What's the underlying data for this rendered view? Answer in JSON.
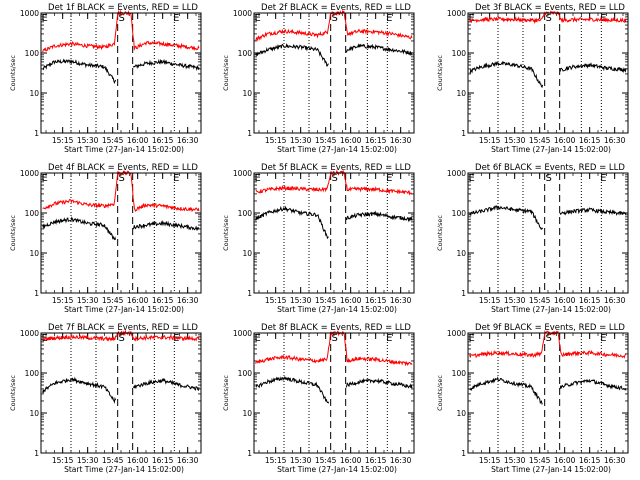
{
  "figure": {
    "ylabel": "Counts/sec",
    "xlabel": "Start Time (27-Jan-14 15:02:00)"
  },
  "chart_data": [
    {
      "type": "line",
      "title": "Det 1f BLACK = Events, RED = LLD",
      "xlabel": "Start Time (27-Jan-14 15:02:00)",
      "ylabel": "Counts/sec",
      "yscale": "log",
      "ylim": [
        1,
        1000
      ],
      "xticks": [
        "15:15",
        "15:30",
        "15:45",
        "16:00",
        "16:15",
        "16:30"
      ],
      "xlim": [
        "15:02",
        "16:38"
      ],
      "markers": [
        {
          "label": "E",
          "time": "15:03"
        },
        {
          "label": "S",
          "time": "15:48",
          "style": "dashed",
          "pair_end": "15:57"
        },
        {
          "label": "E",
          "time": "16:22"
        }
      ],
      "dotted_lines": [
        "15:20",
        "15:35",
        "16:10",
        "16:22"
      ],
      "series": [
        {
          "name": "Events",
          "color": "#000000",
          "x": [
            "15:03",
            "15:10",
            "15:20",
            "15:30",
            "15:40",
            "15:46",
            "15:58",
            "16:05",
            "16:15",
            "16:25",
            "16:37"
          ],
          "y": [
            40,
            60,
            62,
            50,
            45,
            20,
            45,
            55,
            60,
            50,
            42
          ]
        },
        {
          "name": "LLD",
          "color": "#ff0000",
          "x": [
            "15:03",
            "15:10",
            "15:20",
            "15:30",
            "15:40",
            "15:46",
            "15:48",
            "15:56",
            "15:58",
            "16:05",
            "16:15",
            "16:25",
            "16:37"
          ],
          "y": [
            110,
            150,
            170,
            150,
            140,
            170,
            1000,
            1000,
            130,
            180,
            170,
            150,
            130
          ]
        }
      ]
    },
    {
      "type": "line",
      "title": "Det 2f BLACK = Events, RED = LLD",
      "xlabel": "Start Time (27-Jan-14 15:02:00)",
      "ylabel": "Counts/sec",
      "yscale": "log",
      "ylim": [
        1,
        1000
      ],
      "xticks": [
        "15:15",
        "15:30",
        "15:45",
        "16:00",
        "16:15",
        "16:30"
      ],
      "xlim": [
        "15:02",
        "16:38"
      ],
      "markers": [
        {
          "label": "E",
          "time": "15:03"
        },
        {
          "label": "S",
          "time": "15:48",
          "style": "dashed",
          "pair_end": "15:57"
        },
        {
          "label": "E",
          "time": "16:22"
        }
      ],
      "dotted_lines": [
        "15:20",
        "15:35",
        "16:10",
        "16:22"
      ],
      "series": [
        {
          "name": "Events",
          "color": "#000000",
          "x": [
            "15:03",
            "15:10",
            "15:20",
            "15:30",
            "15:40",
            "15:46",
            "15:58",
            "16:05",
            "16:15",
            "16:25",
            "16:37"
          ],
          "y": [
            90,
            120,
            150,
            140,
            120,
            50,
            120,
            150,
            140,
            120,
            100
          ]
        },
        {
          "name": "LLD",
          "color": "#ff0000",
          "x": [
            "15:03",
            "15:10",
            "15:20",
            "15:30",
            "15:40",
            "15:46",
            "15:48",
            "15:56",
            "15:58",
            "16:05",
            "16:15",
            "16:25",
            "16:37"
          ],
          "y": [
            220,
            300,
            350,
            320,
            280,
            330,
            1000,
            1000,
            300,
            350,
            340,
            300,
            240
          ]
        }
      ]
    },
    {
      "type": "line",
      "title": "Det 3f BLACK = Events, RED = LLD",
      "xlabel": "Start Time (27-Jan-14 15:02:00)",
      "ylabel": "Counts/sec",
      "yscale": "log",
      "ylim": [
        1,
        1000
      ],
      "xticks": [
        "15:15",
        "15:30",
        "15:45",
        "16:00",
        "16:15",
        "16:30"
      ],
      "xlim": [
        "15:02",
        "16:38"
      ],
      "markers": [
        {
          "label": "E",
          "time": "15:03"
        },
        {
          "label": "S",
          "time": "15:48",
          "style": "dashed",
          "pair_end": "15:57"
        },
        {
          "label": "E",
          "time": "16:22"
        }
      ],
      "dotted_lines": [
        "15:20",
        "15:35",
        "16:10",
        "16:22"
      ],
      "series": [
        {
          "name": "Events",
          "color": "#000000",
          "x": [
            "15:03",
            "15:10",
            "15:20",
            "15:30",
            "15:40",
            "15:46",
            "15:58",
            "16:05",
            "16:15",
            "16:25",
            "16:37"
          ],
          "y": [
            35,
            45,
            55,
            50,
            40,
            15,
            38,
            45,
            50,
            42,
            38
          ]
        },
        {
          "name": "LLD",
          "color": "#ff0000",
          "x": [
            "15:03",
            "15:10",
            "15:20",
            "15:30",
            "15:40",
            "15:46",
            "15:48",
            "15:56",
            "15:58",
            "16:05",
            "16:15",
            "16:25",
            "16:37"
          ],
          "y": [
            650,
            680,
            700,
            690,
            660,
            650,
            1000,
            1000,
            650,
            680,
            690,
            670,
            650
          ]
        }
      ]
    },
    {
      "type": "line",
      "title": "Det 4f BLACK = Events, RED = LLD",
      "xlabel": "Start Time (27-Jan-14 15:02:00)",
      "ylabel": "Counts/sec",
      "yscale": "log",
      "ylim": [
        1,
        1000
      ],
      "xticks": [
        "15:15",
        "15:30",
        "15:45",
        "16:00",
        "16:15",
        "16:30"
      ],
      "xlim": [
        "15:02",
        "16:38"
      ],
      "markers": [
        {
          "label": "E",
          "time": "15:03"
        },
        {
          "label": "S",
          "time": "15:48",
          "style": "dashed",
          "pair_end": "15:57"
        },
        {
          "label": "E",
          "time": "16:22"
        }
      ],
      "dotted_lines": [
        "15:20",
        "15:35",
        "16:10",
        "16:22"
      ],
      "series": [
        {
          "name": "Events",
          "color": "#000000",
          "x": [
            "15:03",
            "15:10",
            "15:20",
            "15:30",
            "15:40",
            "15:46",
            "15:58",
            "16:05",
            "16:15",
            "16:25",
            "16:37"
          ],
          "y": [
            45,
            60,
            70,
            55,
            50,
            22,
            45,
            50,
            55,
            48,
            40
          ]
        },
        {
          "name": "LLD",
          "color": "#ff0000",
          "x": [
            "15:03",
            "15:10",
            "15:20",
            "15:30",
            "15:40",
            "15:46",
            "15:48",
            "15:56",
            "15:58",
            "16:05",
            "16:15",
            "16:25",
            "16:37"
          ],
          "y": [
            130,
            170,
            200,
            160,
            150,
            170,
            1000,
            1000,
            120,
            160,
            150,
            130,
            120
          ]
        }
      ]
    },
    {
      "type": "line",
      "title": "Det 5f BLACK = Events, RED = LLD",
      "xlabel": "Start Time (27-Jan-14 15:02:00)",
      "ylabel": "Counts/sec",
      "yscale": "log",
      "ylim": [
        1,
        1000
      ],
      "xticks": [
        "15:15",
        "15:30",
        "15:45",
        "16:00",
        "16:15",
        "16:30"
      ],
      "xlim": [
        "15:02",
        "16:38"
      ],
      "markers": [
        {
          "label": "E",
          "time": "15:03"
        },
        {
          "label": "S",
          "time": "15:48",
          "style": "dashed",
          "pair_end": "15:57"
        },
        {
          "label": "E",
          "time": "16:22"
        }
      ],
      "dotted_lines": [
        "15:20",
        "15:35",
        "16:10",
        "16:22"
      ],
      "series": [
        {
          "name": "Events",
          "color": "#000000",
          "x": [
            "15:03",
            "15:10",
            "15:20",
            "15:30",
            "15:40",
            "15:46",
            "15:58",
            "16:05",
            "16:15",
            "16:25",
            "16:37"
          ],
          "y": [
            70,
            100,
            130,
            100,
            90,
            25,
            75,
            90,
            95,
            80,
            70
          ]
        },
        {
          "name": "LLD",
          "color": "#ff0000",
          "x": [
            "15:03",
            "15:10",
            "15:20",
            "15:30",
            "15:40",
            "15:46",
            "15:48",
            "15:56",
            "15:58",
            "16:05",
            "16:15",
            "16:25",
            "16:37"
          ],
          "y": [
            330,
            380,
            420,
            400,
            380,
            400,
            1000,
            1000,
            380,
            400,
            390,
            350,
            320
          ]
        }
      ]
    },
    {
      "type": "line",
      "title": "Det 6f BLACK = Events, RED = LLD",
      "xlabel": "Start Time (27-Jan-14 15:02:00)",
      "ylabel": "Counts/sec",
      "yscale": "log",
      "ylim": [
        1,
        1000
      ],
      "xticks": [
        "15:15",
        "15:30",
        "15:45",
        "16:00",
        "16:15",
        "16:30"
      ],
      "xlim": [
        "15:02",
        "16:38"
      ],
      "markers": [
        {
          "label": "E",
          "time": "15:03"
        },
        {
          "label": "S",
          "time": "15:48",
          "style": "dashed",
          "pair_end": "15:57"
        },
        {
          "label": "E",
          "time": "16:22"
        }
      ],
      "dotted_lines": [
        "15:20",
        "15:35",
        "16:10",
        "16:22"
      ],
      "series": [
        {
          "name": "Events",
          "color": "#000000",
          "x": [
            "15:03",
            "15:10",
            "15:20",
            "15:30",
            "15:40",
            "15:46",
            "15:58",
            "16:05",
            "16:15",
            "16:25",
            "16:37"
          ],
          "y": [
            95,
            110,
            140,
            120,
            110,
            40,
            100,
            110,
            120,
            105,
            95
          ]
        }
      ]
    },
    {
      "type": "line",
      "title": "Det 7f BLACK = Events, RED = LLD",
      "xlabel": "Start Time (27-Jan-14 15:02:00)",
      "ylabel": "Counts/sec",
      "yscale": "log",
      "ylim": [
        1,
        1000
      ],
      "xticks": [
        "15:15",
        "15:30",
        "15:45",
        "16:00",
        "16:15",
        "16:30"
      ],
      "xlim": [
        "15:02",
        "16:38"
      ],
      "markers": [
        {
          "label": "E",
          "time": "15:03"
        },
        {
          "label": "S",
          "time": "15:48",
          "style": "dashed",
          "pair_end": "15:57"
        },
        {
          "label": "E",
          "time": "16:22"
        }
      ],
      "dotted_lines": [
        "15:20",
        "15:35",
        "16:10",
        "16:22"
      ],
      "series": [
        {
          "name": "Events",
          "color": "#000000",
          "x": [
            "15:03",
            "15:10",
            "15:20",
            "15:30",
            "15:40",
            "15:46",
            "15:58",
            "16:05",
            "16:15",
            "16:25",
            "16:37"
          ],
          "y": [
            35,
            55,
            70,
            55,
            45,
            20,
            45,
            55,
            65,
            50,
            40
          ]
        },
        {
          "name": "LLD",
          "color": "#ff0000",
          "x": [
            "15:03",
            "15:10",
            "15:20",
            "15:30",
            "15:40",
            "15:46",
            "15:48",
            "15:56",
            "15:58",
            "16:05",
            "16:15",
            "16:25",
            "16:37"
          ],
          "y": [
            700,
            750,
            800,
            760,
            720,
            700,
            1000,
            1000,
            720,
            760,
            780,
            740,
            720
          ]
        }
      ]
    },
    {
      "type": "line",
      "title": "Det 8f BLACK = Events, RED = LLD",
      "xlabel": "Start Time (27-Jan-14 15:02:00)",
      "ylabel": "Counts/sec",
      "yscale": "log",
      "ylim": [
        1,
        1000
      ],
      "xticks": [
        "15:15",
        "15:30",
        "15:45",
        "16:00",
        "16:15",
        "16:30"
      ],
      "xlim": [
        "15:02",
        "16:38"
      ],
      "markers": [
        {
          "label": "E",
          "time": "15:03"
        },
        {
          "label": "S",
          "time": "15:48",
          "style": "dashed",
          "pair_end": "15:57"
        },
        {
          "label": "E",
          "time": "16:22"
        }
      ],
      "dotted_lines": [
        "15:20",
        "15:35",
        "16:10",
        "16:22"
      ],
      "series": [
        {
          "name": "Events",
          "color": "#000000",
          "x": [
            "15:03",
            "15:10",
            "15:20",
            "15:30",
            "15:40",
            "15:46",
            "15:58",
            "16:05",
            "16:15",
            "16:25",
            "16:37"
          ],
          "y": [
            45,
            60,
            75,
            60,
            50,
            18,
            50,
            60,
            65,
            55,
            45
          ]
        },
        {
          "name": "LLD",
          "color": "#ff0000",
          "x": [
            "15:03",
            "15:10",
            "15:20",
            "15:30",
            "15:40",
            "15:46",
            "15:48",
            "15:56",
            "15:58",
            "16:05",
            "16:15",
            "16:25",
            "16:37"
          ],
          "y": [
            180,
            220,
            250,
            220,
            200,
            220,
            1000,
            1000,
            200,
            230,
            220,
            190,
            170
          ]
        }
      ]
    },
    {
      "type": "line",
      "title": "Det 9f BLACK = Events, RED = LLD",
      "xlabel": "Start Time (27-Jan-14 15:02:00)",
      "ylabel": "Counts/sec",
      "yscale": "log",
      "ylim": [
        1,
        1000
      ],
      "xticks": [
        "15:15",
        "15:30",
        "15:45",
        "16:00",
        "16:15",
        "16:30"
      ],
      "xlim": [
        "15:02",
        "16:38"
      ],
      "markers": [
        {
          "label": "E",
          "time": "15:03"
        },
        {
          "label": "S",
          "time": "15:48",
          "style": "dashed",
          "pair_end": "15:57"
        },
        {
          "label": "E",
          "time": "16:22"
        }
      ],
      "dotted_lines": [
        "15:20",
        "15:35",
        "16:10",
        "16:22"
      ],
      "series": [
        {
          "name": "Events",
          "color": "#000000",
          "x": [
            "15:03",
            "15:10",
            "15:20",
            "15:30",
            "15:40",
            "15:46",
            "15:58",
            "16:05",
            "16:15",
            "16:25",
            "16:37"
          ],
          "y": [
            40,
            55,
            70,
            55,
            45,
            18,
            45,
            55,
            65,
            50,
            40
          ]
        },
        {
          "name": "LLD",
          "color": "#ff0000",
          "x": [
            "15:03",
            "15:10",
            "15:20",
            "15:30",
            "15:40",
            "15:46",
            "15:48",
            "15:56",
            "15:58",
            "16:05",
            "16:15",
            "16:25",
            "16:37"
          ],
          "y": [
            260,
            290,
            320,
            300,
            280,
            300,
            1000,
            1000,
            280,
            310,
            320,
            290,
            270
          ]
        }
      ]
    }
  ]
}
